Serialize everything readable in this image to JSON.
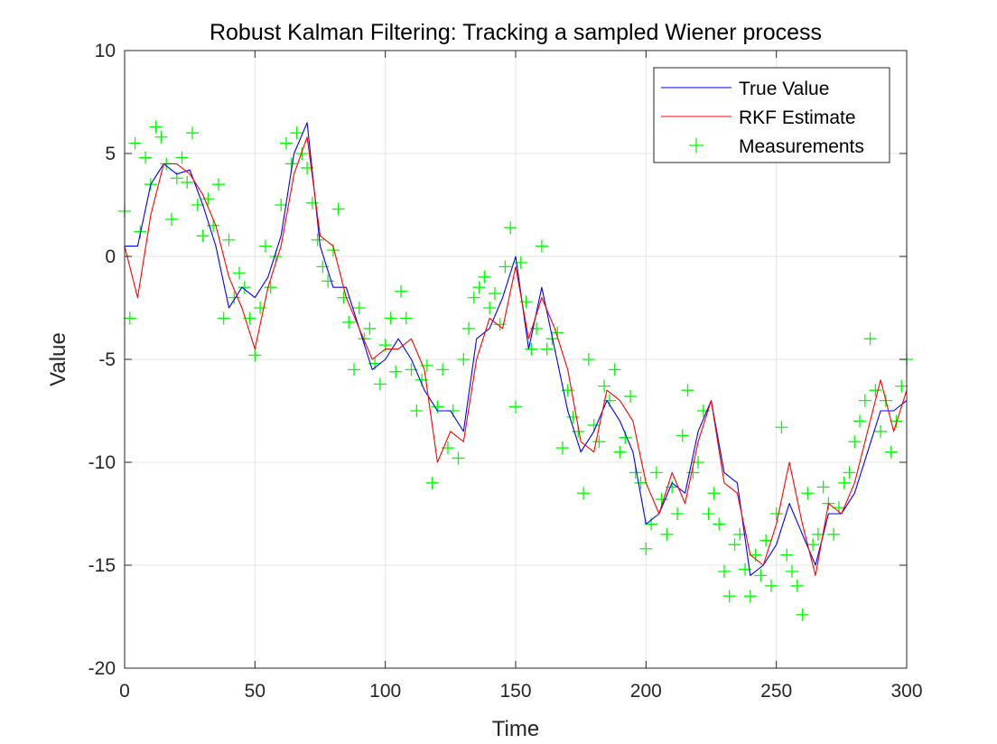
{
  "chart_data": {
    "type": "line",
    "title": "Robust Kalman Filtering: Tracking a sampled Wiener process",
    "xlabel": "Time",
    "ylabel": "Value",
    "xlim": [
      0,
      300
    ],
    "ylim": [
      -20,
      10
    ],
    "xticks": [
      0,
      50,
      100,
      150,
      200,
      250,
      300
    ],
    "yticks": [
      -20,
      -15,
      -10,
      -5,
      0,
      5,
      10
    ],
    "xtick_labels": [
      "0",
      "50",
      "100",
      "150",
      "200",
      "250",
      "300"
    ],
    "ytick_labels": [
      "-20",
      "-15",
      "-10",
      "-5",
      "0",
      "5",
      "10"
    ],
    "grid": true,
    "legend_position": "top-right",
    "colors": {
      "true_value": "#0000ff",
      "estimate": "#ff0000",
      "measurements": "#00ff00",
      "grid": "#e6e6e6",
      "axes": "#262626"
    },
    "series": [
      {
        "name": "True Value",
        "style": "line",
        "color": "#0000ff",
        "x": [
          0,
          5,
          10,
          15,
          20,
          25,
          30,
          35,
          40,
          45,
          50,
          55,
          60,
          65,
          70,
          75,
          80,
          85,
          90,
          95,
          100,
          105,
          110,
          115,
          120,
          125,
          130,
          135,
          140,
          145,
          150,
          155,
          160,
          165,
          170,
          175,
          180,
          185,
          190,
          195,
          200,
          205,
          210,
          215,
          220,
          225,
          230,
          235,
          240,
          245,
          250,
          255,
          260,
          265,
          270,
          275,
          280,
          285,
          290,
          295,
          300
        ],
        "values": [
          0.5,
          0.5,
          3.5,
          4.5,
          4.0,
          4.2,
          2.5,
          0.5,
          -2.5,
          -1.5,
          -2.0,
          -1.0,
          1.0,
          5.0,
          6.5,
          0.5,
          -1.5,
          -1.5,
          -3.5,
          -5.5,
          -5.0,
          -4.0,
          -5.0,
          -6.5,
          -7.5,
          -7.5,
          -8.5,
          -4.0,
          -3.5,
          -2.0,
          0.0,
          -4.5,
          -1.5,
          -4.5,
          -7.5,
          -9.5,
          -8.5,
          -7.0,
          -8.0,
          -9.5,
          -13.0,
          -12.5,
          -11.0,
          -11.5,
          -8.5,
          -7.0,
          -10.5,
          -11.0,
          -15.5,
          -15.0,
          -14.0,
          -12.0,
          -13.5,
          -15.0,
          -12.5,
          -12.5,
          -11.5,
          -9.5,
          -7.5,
          -7.5,
          -7.0
        ]
      },
      {
        "name": "RKF Estimate",
        "style": "line",
        "color": "#ff0000",
        "x": [
          0,
          5,
          10,
          15,
          20,
          25,
          30,
          35,
          40,
          45,
          50,
          55,
          60,
          65,
          70,
          75,
          80,
          85,
          90,
          95,
          100,
          105,
          110,
          115,
          120,
          125,
          130,
          135,
          140,
          145,
          150,
          155,
          160,
          165,
          170,
          175,
          180,
          185,
          190,
          195,
          200,
          205,
          210,
          215,
          220,
          225,
          230,
          235,
          240,
          245,
          250,
          255,
          260,
          265,
          270,
          275,
          280,
          285,
          290,
          295,
          300
        ],
        "values": [
          0.5,
          -2.0,
          2.0,
          4.5,
          4.5,
          4.0,
          3.0,
          1.5,
          -1.0,
          -2.5,
          -4.5,
          -1.5,
          0.5,
          4.0,
          5.8,
          1.0,
          0.5,
          -2.0,
          -3.5,
          -5.0,
          -4.5,
          -4.5,
          -4.0,
          -5.5,
          -10.0,
          -8.5,
          -9.0,
          -5.0,
          -3.0,
          -3.5,
          -0.5,
          -4.0,
          -2.0,
          -3.5,
          -5.5,
          -9.0,
          -9.5,
          -6.5,
          -7.0,
          -8.0,
          -11.0,
          -12.5,
          -10.5,
          -12.0,
          -9.0,
          -7.0,
          -11.0,
          -11.5,
          -14.5,
          -15.0,
          -13.0,
          -10.0,
          -13.0,
          -15.5,
          -12.0,
          -12.5,
          -11.0,
          -8.5,
          -6.0,
          -8.5,
          -6.5
        ]
      },
      {
        "name": "Measurements",
        "style": "markers",
        "marker": "+",
        "color": "#00ff00",
        "x": [
          0,
          2,
          4,
          6,
          8,
          10,
          12,
          14,
          16,
          18,
          20,
          22,
          24,
          26,
          28,
          30,
          32,
          34,
          36,
          38,
          40,
          42,
          44,
          46,
          48,
          50,
          52,
          54,
          56,
          58,
          60,
          62,
          64,
          66,
          68,
          70,
          72,
          74,
          76,
          78,
          80,
          82,
          84,
          86,
          88,
          90,
          92,
          94,
          96,
          98,
          100,
          102,
          104,
          106,
          108,
          110,
          112,
          114,
          116,
          118,
          120,
          122,
          124,
          126,
          128,
          130,
          132,
          134,
          136,
          138,
          140,
          142,
          144,
          146,
          148,
          150,
          152,
          154,
          156,
          158,
          160,
          162,
          164,
          166,
          168,
          170,
          172,
          174,
          176,
          178,
          180,
          182,
          184,
          186,
          188,
          190,
          192,
          194,
          196,
          198,
          200,
          202,
          204,
          206,
          208,
          210,
          212,
          214,
          216,
          218,
          220,
          222,
          224,
          226,
          228,
          230,
          232,
          234,
          236,
          238,
          240,
          242,
          244,
          246,
          248,
          250,
          252,
          254,
          256,
          258,
          260,
          262,
          264,
          266,
          268,
          270,
          272,
          274,
          276,
          278,
          280,
          282,
          284,
          286,
          288,
          290,
          292,
          294,
          296,
          298,
          300
        ],
        "values": [
          2.2,
          -3.0,
          5.5,
          1.2,
          4.8,
          3.5,
          6.3,
          5.8,
          4.5,
          1.8,
          3.8,
          4.8,
          3.6,
          6.0,
          2.5,
          1.0,
          2.8,
          1.5,
          3.5,
          -3.0,
          0.8,
          -2.0,
          -0.8,
          -1.5,
          -3.0,
          -4.8,
          -2.5,
          0.5,
          -1.5,
          0.0,
          2.5,
          5.5,
          4.5,
          6.0,
          5.0,
          4.3,
          2.6,
          0.8,
          -0.5,
          -1.2,
          0.3,
          2.3,
          -2.0,
          -3.2,
          -5.5,
          -2.5,
          -4.0,
          -3.5,
          -5.2,
          -6.2,
          -4.3,
          -3.0,
          -5.6,
          -1.7,
          -3.0,
          -5.5,
          -7.5,
          -6.0,
          -5.3,
          -11.0,
          -7.3,
          -5.5,
          -9.3,
          -7.5,
          -9.8,
          -5.0,
          -3.5,
          -2.0,
          -1.5,
          -1.0,
          -2.5,
          -1.8,
          -3.3,
          -0.5,
          1.4,
          -7.3,
          -0.3,
          -2.2,
          -4.5,
          -3.5,
          0.5,
          -4.5,
          -4.0,
          -3.7,
          -9.3,
          -6.5,
          -7.8,
          -8.5,
          -11.5,
          -5.0,
          -8.2,
          -9.0,
          -6.3,
          -7.0,
          -5.5,
          -9.5,
          -8.8,
          -6.8,
          -10.5,
          -11.0,
          -14.2,
          -13.0,
          -10.5,
          -11.8,
          -13.5,
          -11.2,
          -12.5,
          -8.7,
          -6.5,
          -10.5,
          -10.0,
          -7.5,
          -12.5,
          -11.5,
          -13.0,
          -15.3,
          -16.5,
          -14.0,
          -13.5,
          -15.2,
          -16.5,
          -14.5,
          -15.5,
          -13.8,
          -16.0,
          -12.5,
          -8.3,
          -14.5,
          -15.3,
          -16.0,
          -17.4,
          -11.5,
          -14.0,
          -13.5,
          -11.2,
          -12.0,
          -13.5,
          -12.2,
          -11.0,
          -10.5,
          -9.0,
          -8.0,
          -7.0,
          -4.0,
          -6.5,
          -8.5,
          -7.0,
          -9.5,
          -8.0,
          -6.3,
          -5.0
        ]
      }
    ],
    "legend": [
      "True Value",
      "RKF Estimate",
      "Measurements"
    ]
  }
}
